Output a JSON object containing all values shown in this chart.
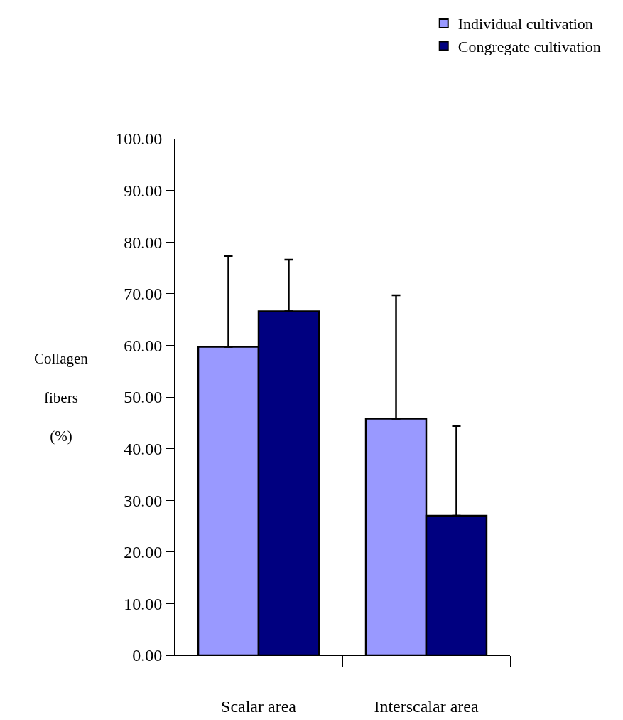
{
  "chart_data": {
    "type": "bar",
    "ylabel": "Collagen fibers (%)",
    "categories": [
      "Scalar area",
      "Interscalar area"
    ],
    "series": [
      {
        "name": "Individual cultivation",
        "color": "#9999ff",
        "values": [
          59.7,
          45.8
        ],
        "errors": [
          [
            59.7,
            77.3
          ],
          [
            45.8,
            69.7
          ]
        ]
      },
      {
        "name": "Congregate cultivation",
        "color": "#000080",
        "values": [
          66.6,
          27.0
        ],
        "errors": [
          [
            66.6,
            76.6
          ],
          [
            27.0,
            44.4
          ]
        ]
      }
    ],
    "ylim": [
      0,
      100
    ],
    "yticks": [
      {
        "value": 0,
        "label": "0.00"
      },
      {
        "value": 10,
        "label": "10.00"
      },
      {
        "value": 20,
        "label": "20.00"
      },
      {
        "value": 30,
        "label": "30.00"
      },
      {
        "value": 40,
        "label": "40.00"
      },
      {
        "value": 50,
        "label": "50.00"
      },
      {
        "value": 60,
        "label": "60.00"
      },
      {
        "value": 70,
        "label": "70.00"
      },
      {
        "value": 80,
        "label": "80.00"
      },
      {
        "value": 90,
        "label": "90.00"
      },
      {
        "value": 100,
        "label": "100.00"
      }
    ],
    "grid": false,
    "legend": "top right"
  }
}
